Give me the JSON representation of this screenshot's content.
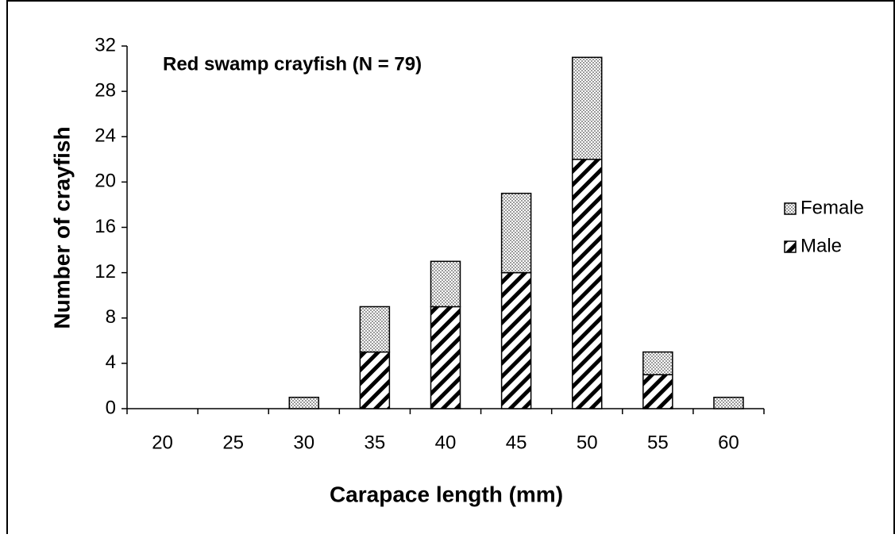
{
  "chart_data": {
    "type": "stacked-bar",
    "title": "Red swamp crayfish (N = 79)",
    "x_label": "Carapace length (mm)",
    "y_label": "Number of crayfish",
    "categories": [
      "20",
      "25",
      "30",
      "35",
      "40",
      "45",
      "50",
      "55",
      "60"
    ],
    "series": [
      {
        "name": "Male",
        "color": "#000000",
        "pattern": "diagonal",
        "values": [
          0,
          0,
          0,
          5,
          9,
          12,
          22,
          3,
          0
        ]
      },
      {
        "name": "Female",
        "color": "#9a9a9a",
        "pattern": "crosshatch",
        "values": [
          0,
          0,
          1,
          4,
          4,
          7,
          9,
          2,
          1
        ]
      }
    ],
    "ylim": [
      0,
      32
    ],
    "yticks": [
      0,
      4,
      8,
      12,
      16,
      20,
      24,
      28,
      32
    ],
    "grid": false,
    "legend": "right"
  }
}
